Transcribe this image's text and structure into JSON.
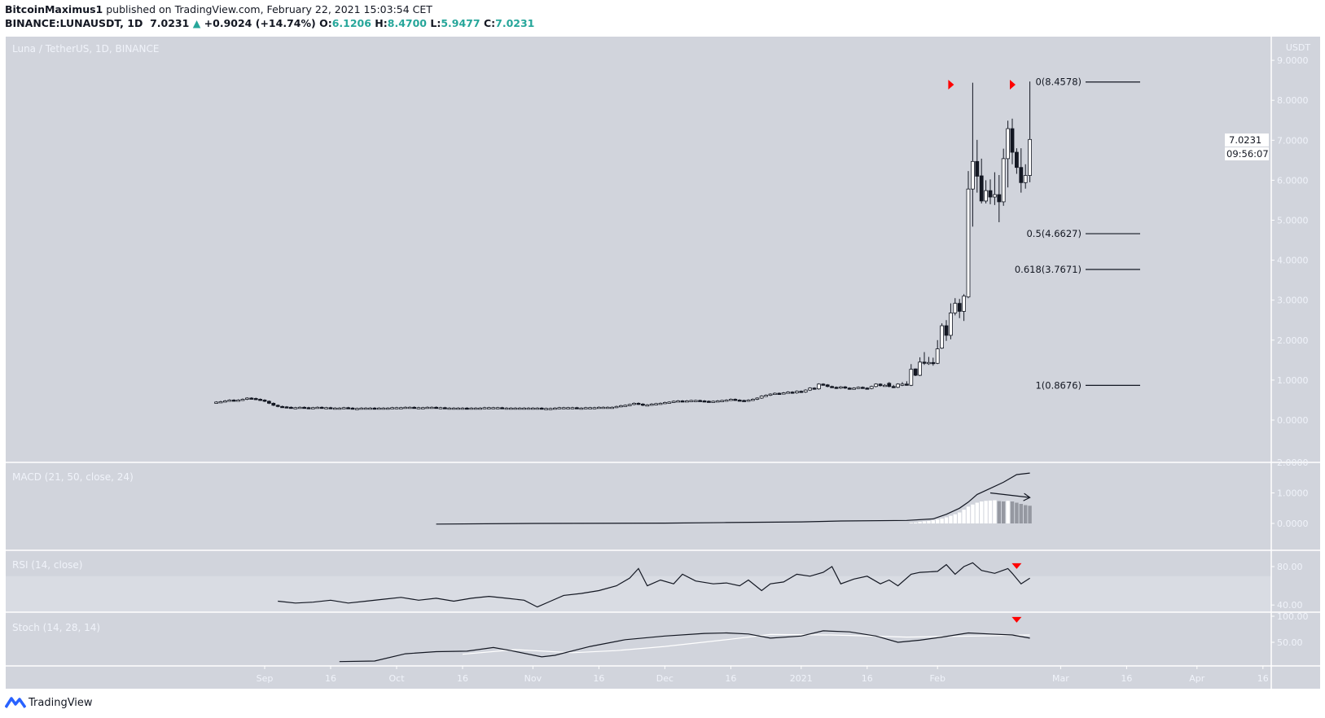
{
  "header": {
    "author": "BitcoinMaximus1",
    "published": "published on TradingView.com, February 22, 2021 15:03:54 CET",
    "symbol": "BINANCE:LUNAUSDT, 1D",
    "last": "7.0231",
    "change": "+0.9024 (+14.74%)",
    "o_label": "O:",
    "o": "6.1206",
    "h_label": "H:",
    "h": "8.4700",
    "l_label": "L:",
    "l": "5.9477",
    "c_label": "C:",
    "c": "7.0231"
  },
  "footer": {
    "brand": "TradingView"
  },
  "colors": {
    "background": "#d1d4dc",
    "axis_text": "#f0f3fa",
    "candle_up": "#ffffff",
    "candle_down": "#131722",
    "marker": "#ff0000",
    "teal": "#26a69a",
    "hist_falling": "#9598a1"
  },
  "chart_data": {
    "type": "candlestick",
    "title": "Luna / TetherUS, 1D, BINANCE",
    "currency": "USDT",
    "x_ticks": [
      {
        "date": "2020-09-01",
        "label": "Sep"
      },
      {
        "date": "2020-09-16",
        "label": "16"
      },
      {
        "date": "2020-10-01",
        "label": "Oct"
      },
      {
        "date": "2020-10-16",
        "label": "16"
      },
      {
        "date": "2020-11-01",
        "label": "Nov"
      },
      {
        "date": "2020-11-16",
        "label": "16"
      },
      {
        "date": "2020-12-01",
        "label": "Dec"
      },
      {
        "date": "2020-12-16",
        "label": "16"
      },
      {
        "date": "2021-01-01",
        "label": "2021"
      },
      {
        "date": "2021-01-16",
        "label": "16"
      },
      {
        "date": "2021-02-01",
        "label": "Feb"
      },
      {
        "date": "2021-03-01",
        "label": "Mar"
      },
      {
        "date": "2021-03-16",
        "label": "16"
      },
      {
        "date": "2021-04-01",
        "label": "Apr"
      },
      {
        "date": "2021-04-16",
        "label": "16"
      }
    ],
    "price_ticks": [
      "9.0000",
      "8.0000",
      "7.0000",
      "6.0000",
      "5.0000",
      "4.0000",
      "3.0000",
      "2.0000",
      "1.0000",
      "0.0000"
    ],
    "last_price": {
      "value": 7.0231,
      "label": "7.0231",
      "countdown": "09:56:07"
    },
    "daily_closes_start": "2020-08-21",
    "daily_closes": [
      0.45,
      0.46,
      0.48,
      0.5,
      0.49,
      0.5,
      0.52,
      0.55,
      0.54,
      0.52,
      0.5,
      0.47,
      0.42,
      0.37,
      0.34,
      0.33,
      0.32,
      0.31,
      0.31,
      0.32,
      0.31,
      0.3,
      0.31,
      0.32,
      0.31,
      0.31,
      0.3,
      0.3,
      0.3,
      0.31,
      0.3,
      0.29,
      0.29,
      0.3,
      0.3,
      0.3,
      0.29,
      0.3,
      0.3,
      0.3,
      0.31,
      0.31,
      0.31,
      0.32,
      0.32,
      0.31,
      0.31,
      0.31,
      0.32,
      0.32,
      0.31,
      0.31,
      0.3,
      0.3,
      0.3,
      0.3,
      0.3,
      0.29,
      0.3,
      0.3,
      0.3,
      0.31,
      0.31,
      0.31,
      0.31,
      0.3,
      0.3,
      0.3,
      0.3,
      0.3,
      0.3,
      0.3,
      0.3,
      0.3,
      0.29,
      0.29,
      0.29,
      0.3,
      0.31,
      0.31,
      0.31,
      0.31,
      0.3,
      0.3,
      0.31,
      0.31,
      0.31,
      0.32,
      0.32,
      0.32,
      0.32,
      0.34,
      0.36,
      0.37,
      0.39,
      0.42,
      0.4,
      0.37,
      0.38,
      0.4,
      0.41,
      0.42,
      0.44,
      0.45,
      0.47,
      0.48,
      0.47,
      0.48,
      0.49,
      0.49,
      0.48,
      0.47,
      0.46,
      0.47,
      0.48,
      0.49,
      0.5,
      0.52,
      0.5,
      0.49,
      0.48,
      0.5,
      0.52,
      0.55,
      0.6,
      0.62,
      0.65,
      0.67,
      0.66,
      0.68,
      0.7,
      0.68,
      0.72,
      0.7,
      0.75,
      0.8,
      0.78,
      0.9,
      0.88,
      0.84,
      0.82,
      0.8,
      0.83,
      0.8,
      0.78,
      0.8,
      0.82,
      0.8,
      0.79,
      0.84,
      0.9,
      0.86
    ],
    "ohlc_start": "2021-01-20",
    "ohlc": [
      [
        0.86,
        0.9,
        0.84,
        0.87
      ],
      [
        0.92,
        0.95,
        0.82,
        0.84
      ],
      [
        0.84,
        0.88,
        0.8,
        0.82
      ],
      [
        0.82,
        0.92,
        0.8,
        0.9
      ],
      [
        0.88,
        0.95,
        0.85,
        0.9
      ],
      [
        0.9,
        0.97,
        0.86,
        0.88
      ],
      [
        0.87,
        1.4,
        0.85,
        1.27
      ],
      [
        1.28,
        1.29,
        1.1,
        1.12
      ],
      [
        1.12,
        1.57,
        1.1,
        1.45
      ],
      [
        1.45,
        1.7,
        1.38,
        1.42
      ],
      [
        1.42,
        1.58,
        1.38,
        1.44
      ],
      [
        1.44,
        1.56,
        1.36,
        1.42
      ],
      [
        1.42,
        2.0,
        1.4,
        1.78
      ],
      [
        1.8,
        2.42,
        1.78,
        2.36
      ],
      [
        2.36,
        2.5,
        1.98,
        2.12
      ],
      [
        2.12,
        2.92,
        2.02,
        2.68
      ],
      [
        2.68,
        3.05,
        2.62,
        2.92
      ],
      [
        2.92,
        3.03,
        2.55,
        2.72
      ],
      [
        2.72,
        3.15,
        2.48,
        3.1
      ],
      [
        3.08,
        6.23,
        3.05,
        5.78
      ],
      [
        5.78,
        8.44,
        4.84,
        6.47
      ],
      [
        6.47,
        7.01,
        5.69,
        6.1
      ],
      [
        6.11,
        6.54,
        5.42,
        5.48
      ],
      [
        5.48,
        6.0,
        5.42,
        5.74
      ],
      [
        5.74,
        6.02,
        5.4,
        5.58
      ],
      [
        5.58,
        6.2,
        5.38,
        5.64
      ],
      [
        5.64,
        6.13,
        4.95,
        5.46
      ],
      [
        5.46,
        6.79,
        5.36,
        6.54
      ],
      [
        6.54,
        7.49,
        5.82,
        7.29
      ],
      [
        7.29,
        7.54,
        6.4,
        6.7
      ],
      [
        6.7,
        6.8,
        6.16,
        6.32
      ],
      [
        6.32,
        6.8,
        5.69,
        5.94
      ],
      [
        5.94,
        6.4,
        5.79,
        6.12
      ],
      [
        6.12,
        8.47,
        5.95,
        7.02
      ]
    ],
    "fibonacci": [
      {
        "level": "0",
        "price": 8.4578,
        "label": "0(8.4578)"
      },
      {
        "level": "0.5",
        "price": 4.6627,
        "label": "0.5(4.6627)"
      },
      {
        "level": "0.618",
        "price": 3.7671,
        "label": "0.618(3.7671)"
      },
      {
        "level": "1",
        "price": 0.8676,
        "label": "1(0.8676)"
      }
    ],
    "markers": [
      {
        "pane": "price",
        "date": "2021-02-04",
        "value": 8.39,
        "shape": "triangle-right"
      },
      {
        "pane": "price",
        "date": "2021-02-18",
        "value": 8.39,
        "shape": "triangle-right"
      },
      {
        "pane": "rsi",
        "date": "2021-02-19",
        "value": 81,
        "shape": "triangle-down"
      },
      {
        "pane": "stoch",
        "date": "2021-02-19",
        "value": 94,
        "shape": "triangle-down"
      }
    ],
    "macd": {
      "title": "MACD (21, 50, close, 24)",
      "ticks": [
        "2.0000",
        "1.0000",
        "0.0000"
      ],
      "line": [
        [
          "2020-10-10",
          -0.02
        ],
        [
          "2020-11-01",
          0.0
        ],
        [
          "2020-12-01",
          0.01
        ],
        [
          "2020-12-15",
          0.03
        ],
        [
          "2021-01-01",
          0.05
        ],
        [
          "2021-01-10",
          0.08
        ],
        [
          "2021-01-25",
          0.1
        ],
        [
          "2021-01-31",
          0.15
        ],
        [
          "2021-02-03",
          0.3
        ],
        [
          "2021-02-06",
          0.5
        ],
        [
          "2021-02-08",
          0.7
        ],
        [
          "2021-02-10",
          0.95
        ],
        [
          "2021-02-13",
          1.15
        ],
        [
          "2021-02-16",
          1.35
        ],
        [
          "2021-02-19",
          1.6
        ],
        [
          "2021-02-22",
          1.65
        ]
      ],
      "histogram_start": "2021-01-26",
      "histogram": [
        0.02,
        0.03,
        0.05,
        0.07,
        0.08,
        0.1,
        0.13,
        0.16,
        0.2,
        0.25,
        0.3,
        0.36,
        0.45,
        0.55,
        0.62,
        0.68,
        0.72,
        0.74,
        0.75,
        0.76,
        0.73,
        0.72,
        0.74,
        0.72,
        0.68,
        0.64,
        0.6,
        0.58
      ],
      "arrow": [
        [
          "2021-02-13",
          1.0
        ],
        [
          "2021-02-22",
          0.85
        ]
      ]
    },
    "rsi": {
      "title": "RSI (14, close)",
      "ticks": [
        "80.00",
        "40.00"
      ],
      "band": [
        30,
        70
      ],
      "line": [
        [
          "2020-09-04",
          44
        ],
        [
          "2020-09-08",
          42
        ],
        [
          "2020-09-12",
          43
        ],
        [
          "2020-09-16",
          45
        ],
        [
          "2020-09-20",
          42
        ],
        [
          "2020-09-24",
          44
        ],
        [
          "2020-09-28",
          46
        ],
        [
          "2020-10-02",
          48
        ],
        [
          "2020-10-06",
          45
        ],
        [
          "2020-10-10",
          47
        ],
        [
          "2020-10-14",
          44
        ],
        [
          "2020-10-18",
          47
        ],
        [
          "2020-10-22",
          49
        ],
        [
          "2020-10-26",
          47
        ],
        [
          "2020-10-30",
          45
        ],
        [
          "2020-11-02",
          38
        ],
        [
          "2020-11-05",
          44
        ],
        [
          "2020-11-08",
          50
        ],
        [
          "2020-11-12",
          52
        ],
        [
          "2020-11-16",
          55
        ],
        [
          "2020-11-20",
          60
        ],
        [
          "2020-11-23",
          68
        ],
        [
          "2020-11-25",
          78
        ],
        [
          "2020-11-27",
          60
        ],
        [
          "2020-11-30",
          66
        ],
        [
          "2020-12-03",
          62
        ],
        [
          "2020-12-05",
          72
        ],
        [
          "2020-12-08",
          65
        ],
        [
          "2020-12-12",
          62
        ],
        [
          "2020-12-15",
          63
        ],
        [
          "2020-12-18",
          60
        ],
        [
          "2020-12-20",
          66
        ],
        [
          "2020-12-23",
          55
        ],
        [
          "2020-12-25",
          62
        ],
        [
          "2020-12-28",
          64
        ],
        [
          "2020-12-31",
          72
        ],
        [
          "2021-01-03",
          70
        ],
        [
          "2021-01-06",
          74
        ],
        [
          "2021-01-08",
          80
        ],
        [
          "2021-01-10",
          62
        ],
        [
          "2021-01-13",
          67
        ],
        [
          "2021-01-16",
          70
        ],
        [
          "2021-01-19",
          62
        ],
        [
          "2021-01-21",
          66
        ],
        [
          "2021-01-23",
          60
        ],
        [
          "2021-01-26",
          72
        ],
        [
          "2021-01-28",
          74
        ],
        [
          "2021-02-01",
          75
        ],
        [
          "2021-02-03",
          82
        ],
        [
          "2021-02-05",
          72
        ],
        [
          "2021-02-07",
          80
        ],
        [
          "2021-02-09",
          84
        ],
        [
          "2021-02-11",
          76
        ],
        [
          "2021-02-14",
          73
        ],
        [
          "2021-02-17",
          78
        ],
        [
          "2021-02-18",
          73
        ],
        [
          "2021-02-20",
          62
        ],
        [
          "2021-02-22",
          68
        ]
      ]
    },
    "stoch": {
      "title": "Stoch (14, 28, 14)",
      "ticks": [
        "100.00",
        "50.00"
      ],
      "k": [
        [
          "2020-09-18",
          13
        ],
        [
          "2020-09-26",
          14
        ],
        [
          "2020-10-03",
          28
        ],
        [
          "2020-10-10",
          32
        ],
        [
          "2020-10-17",
          33
        ],
        [
          "2020-10-23",
          40
        ],
        [
          "2020-10-27",
          34
        ],
        [
          "2020-11-03",
          22
        ],
        [
          "2020-11-06",
          25
        ],
        [
          "2020-11-14",
          42
        ],
        [
          "2020-11-22",
          55
        ],
        [
          "2020-12-01",
          62
        ],
        [
          "2020-12-10",
          67
        ],
        [
          "2020-12-15",
          68
        ],
        [
          "2020-12-20",
          66
        ],
        [
          "2020-12-25",
          58
        ],
        [
          "2021-01-01",
          62
        ],
        [
          "2021-01-06",
          72
        ],
        [
          "2021-01-12",
          70
        ],
        [
          "2021-01-18",
          62
        ],
        [
          "2021-01-23",
          50
        ],
        [
          "2021-01-28",
          54
        ],
        [
          "2021-02-02",
          60
        ],
        [
          "2021-02-08",
          68
        ],
        [
          "2021-02-13",
          66
        ],
        [
          "2021-02-18",
          64
        ],
        [
          "2021-02-22",
          58
        ]
      ],
      "d": [
        [
          "2020-10-16",
          27
        ],
        [
          "2020-10-28",
          36
        ],
        [
          "2020-11-10",
          30
        ],
        [
          "2020-11-20",
          34
        ],
        [
          "2020-12-01",
          42
        ],
        [
          "2020-12-15",
          55
        ],
        [
          "2020-12-25",
          65
        ],
        [
          "2021-01-08",
          64
        ],
        [
          "2021-01-25",
          60
        ],
        [
          "2021-02-10",
          62
        ],
        [
          "2021-02-22",
          64
        ]
      ]
    }
  }
}
